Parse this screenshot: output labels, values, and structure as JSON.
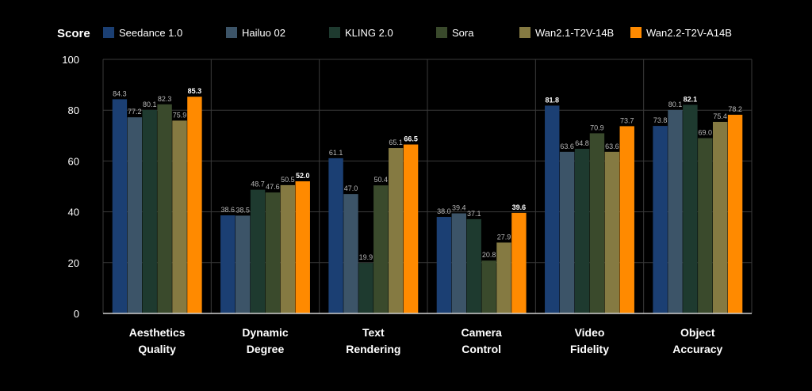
{
  "chart_data": {
    "type": "bar",
    "ylabel": "Score",
    "ylim": [
      0,
      100
    ],
    "yticks": [
      0,
      20,
      40,
      60,
      80,
      100
    ],
    "grid": true,
    "legend_position": "top",
    "categories": [
      [
        "Aesthetics",
        "Quality"
      ],
      [
        "Dynamic",
        "Degree"
      ],
      [
        "Text",
        "Rendering"
      ],
      [
        "Camera",
        "Control"
      ],
      [
        "Video",
        "Fidelity"
      ],
      [
        "Object",
        "Accuracy"
      ]
    ],
    "series": [
      {
        "name": "Seedance 1.0",
        "color": "#1b3f73",
        "values": [
          84.3,
          38.6,
          61.1,
          38.0,
          81.8,
          73.8
        ]
      },
      {
        "name": "Hailuo 02",
        "color": "#3c5468",
        "values": [
          77.2,
          38.5,
          47.0,
          39.4,
          63.6,
          80.1
        ]
      },
      {
        "name": "KLING 2.0",
        "color": "#1e3a2f",
        "values": [
          80.1,
          48.7,
          19.9,
          37.1,
          64.8,
          82.1
        ]
      },
      {
        "name": "Sora",
        "color": "#3a4a2c",
        "values": [
          82.3,
          47.6,
          50.4,
          20.8,
          70.9,
          69.0
        ]
      },
      {
        "name": "Wan2.1-T2V-14B",
        "color": "#857a42",
        "values": [
          75.9,
          50.5,
          65.1,
          27.9,
          63.6,
          75.4
        ]
      },
      {
        "name": "Wan2.2-T2V-A14B",
        "color": "#ff8a00",
        "values": [
          85.3,
          52.0,
          66.5,
          39.6,
          73.7,
          78.2
        ]
      }
    ],
    "bold_labels": [
      [
        5,
        0
      ],
      [
        5,
        1
      ],
      [
        5,
        2
      ],
      [
        5,
        3
      ],
      [
        0,
        4
      ],
      [
        2,
        5
      ]
    ]
  }
}
